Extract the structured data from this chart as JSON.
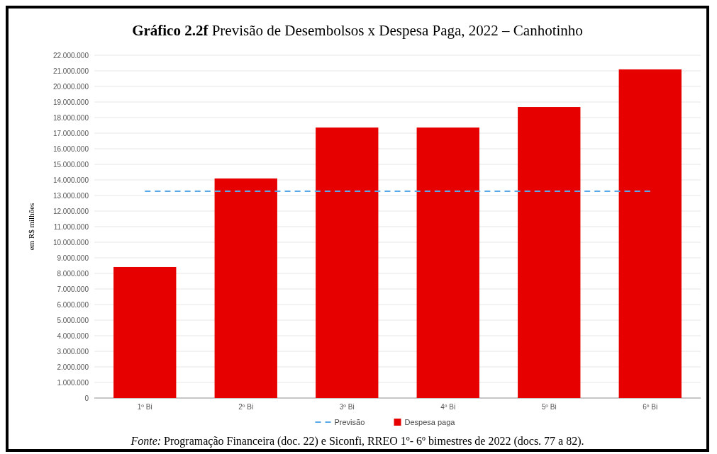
{
  "chart_data": {
    "type": "bar",
    "title": "Gráfico 2.2f Previsão de Desembolsos x Despesa Paga, 2022 – Canhotinho",
    "ylabel": "em R$ milhões",
    "categories": [
      "1º Bi",
      "2º Bi",
      "3º Bi",
      "4º Bi",
      "5º Bi",
      "6º Bi"
    ],
    "series": [
      {
        "name": "Previsão",
        "type": "line",
        "line_style": "dashed",
        "color": "#5aa9e6",
        "values": [
          13270000,
          13270000,
          13270000,
          13270000,
          13270000,
          13270000
        ]
      },
      {
        "name": "Despesa paga",
        "color": "#e60000",
        "values": [
          8410000,
          14090000,
          17360000,
          17360000,
          18680000,
          21090000
        ]
      }
    ],
    "ylim": [
      0,
      22000000
    ],
    "yticks": [
      {
        "value": 0,
        "label": "0"
      },
      {
        "value": 1000000,
        "label": "1.000.000"
      },
      {
        "value": 2000000,
        "label": "2.000.000"
      },
      {
        "value": 3000000,
        "label": "3.000.000"
      },
      {
        "value": 4000000,
        "label": "4.000.000"
      },
      {
        "value": 5000000,
        "label": "5.000.000"
      },
      {
        "value": 6000000,
        "label": "6.000.000"
      },
      {
        "value": 7000000,
        "label": "7.000.000"
      },
      {
        "value": 8000000,
        "label": "8.000.000"
      },
      {
        "value": 9000000,
        "label": "9.000.000"
      },
      {
        "value": 10000000,
        "label": "10.000.000"
      },
      {
        "value": 11000000,
        "label": "11.000.000"
      },
      {
        "value": 12000000,
        "label": "12.000.000"
      },
      {
        "value": 13000000,
        "label": "13.000.000"
      },
      {
        "value": 14000000,
        "label": "14.000.000"
      },
      {
        "value": 15000000,
        "label": "15.000.000"
      },
      {
        "value": 16000000,
        "label": "16.000.000"
      },
      {
        "value": 17000000,
        "label": "17.000.000"
      },
      {
        "value": 18000000,
        "label": "18.000.000"
      },
      {
        "value": 19000000,
        "label": "19.000.000"
      },
      {
        "value": 20000000,
        "label": "20.000.000"
      },
      {
        "value": 21000000,
        "label": "21.000.000"
      },
      {
        "value": 22000000,
        "label": "22.000.000"
      }
    ],
    "grid": "y",
    "legend": "bottom",
    "annotations": [
      "Fonte: Programação Financeira (doc. 22) e Siconfi, RREO 1º- 6º bimestres de 2022 (docs. 77 a 82)."
    ]
  }
}
